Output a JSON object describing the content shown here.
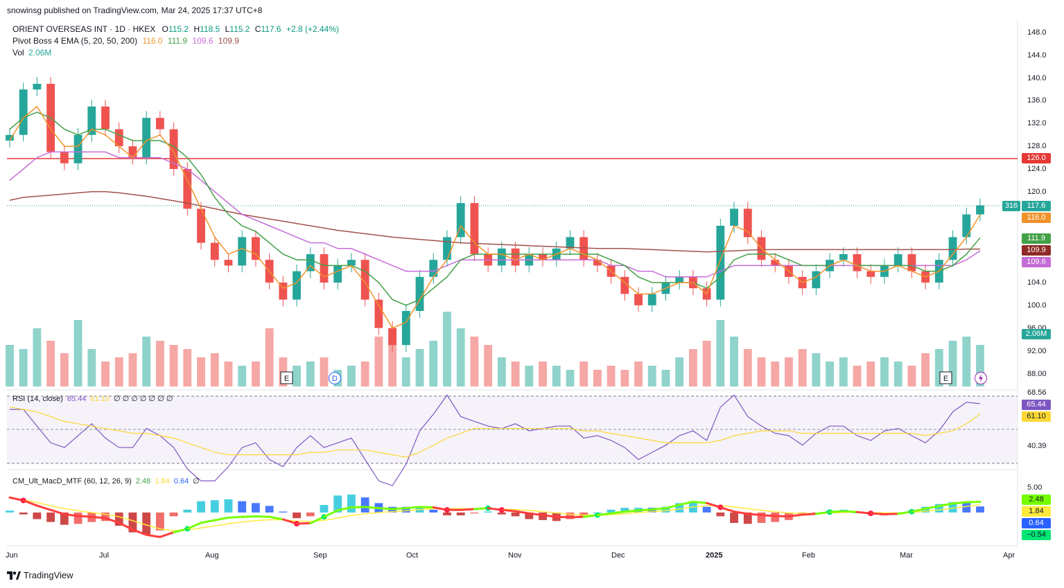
{
  "header": {
    "published": "snowinsg published on TradingView.com, Mar 24, 2025 17:37 UTC+8",
    "symbol": "ORIENT OVERSEAS INT · 1D · HKEX",
    "o_label": "O",
    "o_val": "115.2",
    "h_label": "H",
    "h_val": "118.5",
    "l_label": "L",
    "l_val": "115.2",
    "c_label": "C",
    "c_val": "117.6",
    "change": "+2.8 (+2.44%)"
  },
  "ema": {
    "name": "Pivot Boss 4 EMA (5, 20, 50, 200)",
    "v1": "116.0",
    "v2": "111.9",
    "v3": "109.6",
    "v4": "109.9"
  },
  "vol": {
    "name": "Vol",
    "value": "2.06M"
  },
  "rsi": {
    "name": "RSI (14, close)",
    "v1": "65.44",
    "v2": "61.10",
    "zeros": "∅ ∅ ∅ ∅ ∅ ∅ ∅"
  },
  "macd": {
    "name": "CM_Ult_MacD_MTF (60, 12, 26, 9)",
    "v1": "2.48",
    "v2": "1.84",
    "v3": "0.64",
    "v4": "∅"
  },
  "price_axis": [
    "148.0",
    "144.0",
    "140.0",
    "136.0",
    "132.0",
    "128.0",
    "124.0",
    "120.0",
    "104.0",
    "100.0",
    "96.00",
    "92.00",
    "88.00"
  ],
  "price_tags": {
    "resistance": "126.0",
    "last": "117.6",
    "countdown": "316",
    "ema5": "116.0",
    "ema20": "111.9",
    "ema200": "109.9",
    "ema50": "109.6",
    "volume": "2.06M"
  },
  "rsi_axis": {
    "top": "68.56",
    "bottom": "40.39",
    "tag1": "65.44",
    "tag2": "61.10"
  },
  "macd_axis": {
    "top": "5.00",
    "tag1": "2.48",
    "tag2": "1.84",
    "tag3": "0.64",
    "tag4": "−0.54"
  },
  "time_axis": [
    "Jun",
    "Jul",
    "Aug",
    "Sep",
    "Oct",
    "Nov",
    "Dec",
    "2025",
    "Feb",
    "Mar",
    "Apr"
  ],
  "events": {
    "earnings": "E",
    "dividend": "D"
  },
  "footer": {
    "brand": "TradingView"
  },
  "colors": {
    "up": "#26a69a",
    "down": "#ef5350",
    "ema5": "#f0932b",
    "ema20": "#43a047",
    "ema50": "#c56cd6",
    "ema200": "#a0524b",
    "resistance": "#e53935"
  },
  "chart_data": {
    "type": "candlestick",
    "title": "ORIENT OVERSEAS INT · 1D · HKEX",
    "ylim": [
      86,
      150
    ],
    "resistance_level": 126.0,
    "last_close": 117.6,
    "x": [
      "Jun",
      "Jul",
      "Aug",
      "Sep",
      "Oct",
      "Nov",
      "Dec",
      "2025",
      "Feb",
      "Mar",
      "Apr"
    ],
    "close_path": [
      130,
      138,
      139,
      127,
      125,
      130,
      135,
      131,
      128,
      126,
      133,
      131,
      124,
      117,
      111,
      108,
      107,
      112,
      108,
      104,
      101,
      106,
      109,
      104,
      107,
      108,
      101,
      96,
      93,
      99,
      105,
      108,
      112,
      118,
      109,
      107,
      110,
      107,
      109,
      108,
      110,
      112,
      108,
      107,
      105,
      102,
      100,
      102,
      104,
      105,
      103,
      101,
      114,
      117,
      112,
      108,
      107,
      105,
      103,
      106,
      108,
      109,
      106,
      105,
      107,
      109,
      106,
      104,
      108,
      112,
      116,
      117.6
    ],
    "ema5": [
      129,
      133,
      135,
      131,
      128,
      128,
      131,
      130,
      128,
      126,
      129,
      130,
      127,
      122,
      117,
      112,
      109,
      110,
      109,
      106,
      103,
      104,
      107,
      105,
      106,
      107,
      104,
      100,
      96,
      97,
      101,
      105,
      108,
      114,
      111,
      109,
      109,
      108,
      109,
      108,
      109,
      110,
      109,
      108,
      106,
      104,
      102,
      102,
      103,
      104,
      104,
      102,
      108,
      114,
      113,
      110,
      108,
      106,
      104,
      105,
      107,
      108,
      107,
      106,
      106,
      107,
      106,
      105,
      106,
      109,
      112,
      116.0
    ],
    "ema20": [
      131,
      133,
      134,
      133,
      131,
      130,
      131,
      131,
      130,
      129,
      129,
      129,
      128,
      126,
      123,
      119,
      116,
      114,
      113,
      111,
      109,
      108,
      108,
      107,
      107,
      107,
      106,
      104,
      101,
      100,
      101,
      103,
      105,
      108,
      109,
      109,
      109,
      109,
      109,
      109,
      109,
      109,
      109,
      109,
      108,
      107,
      105,
      104,
      104,
      104,
      104,
      103,
      105,
      108,
      109,
      109,
      109,
      108,
      107,
      107,
      107,
      108,
      107,
      107,
      107,
      107,
      107,
      106,
      106,
      107,
      109,
      111.9
    ],
    "ema50": [
      122,
      124,
      126,
      127,
      127,
      127,
      127,
      127,
      126,
      126,
      126,
      126,
      125,
      124,
      122,
      120,
      118,
      116,
      115,
      114,
      113,
      112,
      111,
      111,
      110,
      110,
      109,
      108,
      107,
      106,
      106,
      106,
      107,
      108,
      108,
      108,
      108,
      108,
      108,
      108,
      108,
      108,
      108,
      108,
      107,
      107,
      106,
      106,
      105,
      105,
      105,
      105,
      106,
      107,
      107,
      107,
      107,
      107,
      107,
      107,
      107,
      107,
      107,
      107,
      107,
      107,
      107,
      107,
      107,
      107,
      108,
      109.6
    ],
    "ema200": [
      118.5,
      119,
      119.2,
      119.4,
      119.6,
      119.8,
      120,
      120,
      119.8,
      119.5,
      119.2,
      118.8,
      118.4,
      118,
      117.5,
      117,
      116.5,
      116,
      115.6,
      115.2,
      114.8,
      114.4,
      114,
      113.6,
      113.2,
      112.9,
      112.6,
      112.3,
      112,
      111.8,
      111.6,
      111.4,
      111.2,
      111,
      110.9,
      110.8,
      110.7,
      110.6,
      110.5,
      110.4,
      110.3,
      110.2,
      110.1,
      110,
      110,
      110,
      109.9,
      109.8,
      109.7,
      109.6,
      109.5,
      109.4,
      109.5,
      109.6,
      109.7,
      109.8,
      109.8,
      109.8,
      109.8,
      109.8,
      109.8,
      109.8,
      109.8,
      109.8,
      109.8,
      109.8,
      109.8,
      109.8,
      109.8,
      109.8,
      109.9,
      109.9
    ],
    "volume_rel": [
      0.5,
      0.45,
      0.7,
      0.55,
      0.4,
      0.8,
      0.45,
      0.3,
      0.35,
      0.4,
      0.6,
      0.55,
      0.5,
      0.45,
      0.35,
      0.4,
      0.3,
      0.25,
      0.3,
      0.7,
      0.35,
      0.25,
      0.3,
      0.35,
      0.2,
      0.25,
      0.3,
      0.6,
      0.5,
      0.35,
      0.45,
      0.55,
      0.9,
      0.7,
      0.6,
      0.5,
      0.35,
      0.3,
      0.25,
      0.3,
      0.25,
      0.2,
      0.3,
      0.2,
      0.25,
      0.2,
      0.3,
      0.25,
      0.2,
      0.35,
      0.45,
      0.55,
      0.8,
      0.6,
      0.45,
      0.35,
      0.3,
      0.35,
      0.45,
      0.4,
      0.3,
      0.35,
      0.25,
      0.3,
      0.35,
      0.3,
      0.25,
      0.4,
      0.45,
      0.55,
      0.6,
      0.5
    ],
    "rsi": [
      63,
      63,
      56,
      49,
      47,
      52,
      57,
      51,
      47,
      47,
      55,
      52,
      47,
      38,
      33,
      33,
      39,
      47,
      49,
      42,
      39,
      47,
      52,
      47,
      49,
      51,
      42,
      33,
      31,
      40,
      54,
      61,
      69,
      60,
      58,
      56,
      55,
      57,
      54,
      55,
      56,
      56,
      51,
      52,
      50,
      47,
      42,
      45,
      48,
      52,
      54,
      50,
      64,
      69,
      60,
      56,
      53,
      52,
      48,
      53,
      56,
      56,
      52,
      50,
      54,
      55,
      52,
      49,
      54,
      62,
      66,
      65.4
    ],
    "rsi_ma": [
      64,
      63,
      62,
      60,
      58,
      57,
      56,
      55,
      54,
      53,
      53,
      52,
      51,
      49,
      47,
      45,
      44,
      44,
      44,
      44,
      44,
      44,
      45,
      45,
      46,
      46,
      46,
      45,
      44,
      43,
      45,
      48,
      51,
      53,
      55,
      55,
      55,
      55,
      55,
      55,
      55,
      55,
      54,
      54,
      53,
      52,
      51,
      50,
      49,
      49,
      49,
      49,
      50,
      52,
      53,
      54,
      54,
      54,
      53,
      53,
      53,
      53,
      53,
      53,
      53,
      53,
      53,
      52,
      53,
      54,
      57,
      61.1
    ],
    "macd": [
      3.5,
      2.8,
      1.6,
      0.6,
      -0.4,
      -0.8,
      -1.0,
      -1.3,
      -2.4,
      -4.0,
      -5.2,
      -5.7,
      -4.6,
      -3.8,
      -2.4,
      -1.8,
      -1.2,
      -1.0,
      -0.9,
      -1.0,
      -1.6,
      -2.6,
      -2.5,
      -1.0,
      0.5,
      1.2,
      1.3,
      1.0,
      0.8,
      1.0,
      1.3,
      1.2,
      0.6,
      0.6,
      0.8,
      1.0,
      0.6,
      0.3,
      -0.2,
      -0.6,
      -1.0,
      -1.1,
      -1.0,
      -0.6,
      -0.2,
      0.2,
      0.5,
      0.7,
      1.0,
      1.8,
      2.5,
      2.2,
      1.2,
      0.2,
      -0.3,
      -0.6,
      -0.8,
      -0.9,
      -0.5,
      -0.3,
      0.1,
      0.3,
      0.1,
      -0.2,
      -0.4,
      -0.3,
      0.2,
      0.9,
      1.5,
      2.1,
      2.4,
      2.48
    ],
    "signal": [
      3.3,
      3.0,
      2.3,
      1.6,
      0.9,
      0.4,
      0.0,
      -0.4,
      -1.0,
      -1.9,
      -2.9,
      -3.8,
      -4.2,
      -4.1,
      -3.6,
      -3.1,
      -2.6,
      -2.2,
      -1.9,
      -1.7,
      -1.7,
      -2.0,
      -2.1,
      -1.8,
      -1.3,
      -0.7,
      -0.3,
      0.0,
      0.2,
      0.4,
      0.7,
      0.9,
      0.9,
      0.9,
      0.9,
      0.9,
      0.8,
      0.7,
      0.5,
      0.2,
      -0.1,
      -0.4,
      -0.6,
      -0.6,
      -0.5,
      -0.3,
      0.0,
      0.2,
      0.4,
      0.8,
      1.3,
      1.6,
      1.6,
      1.3,
      0.9,
      0.5,
      0.2,
      -0.1,
      -0.2,
      -0.2,
      -0.1,
      0.0,
      0.1,
      0.0,
      -0.1,
      -0.1,
      0.0,
      0.3,
      0.6,
      1.0,
      1.4,
      1.84
    ]
  }
}
